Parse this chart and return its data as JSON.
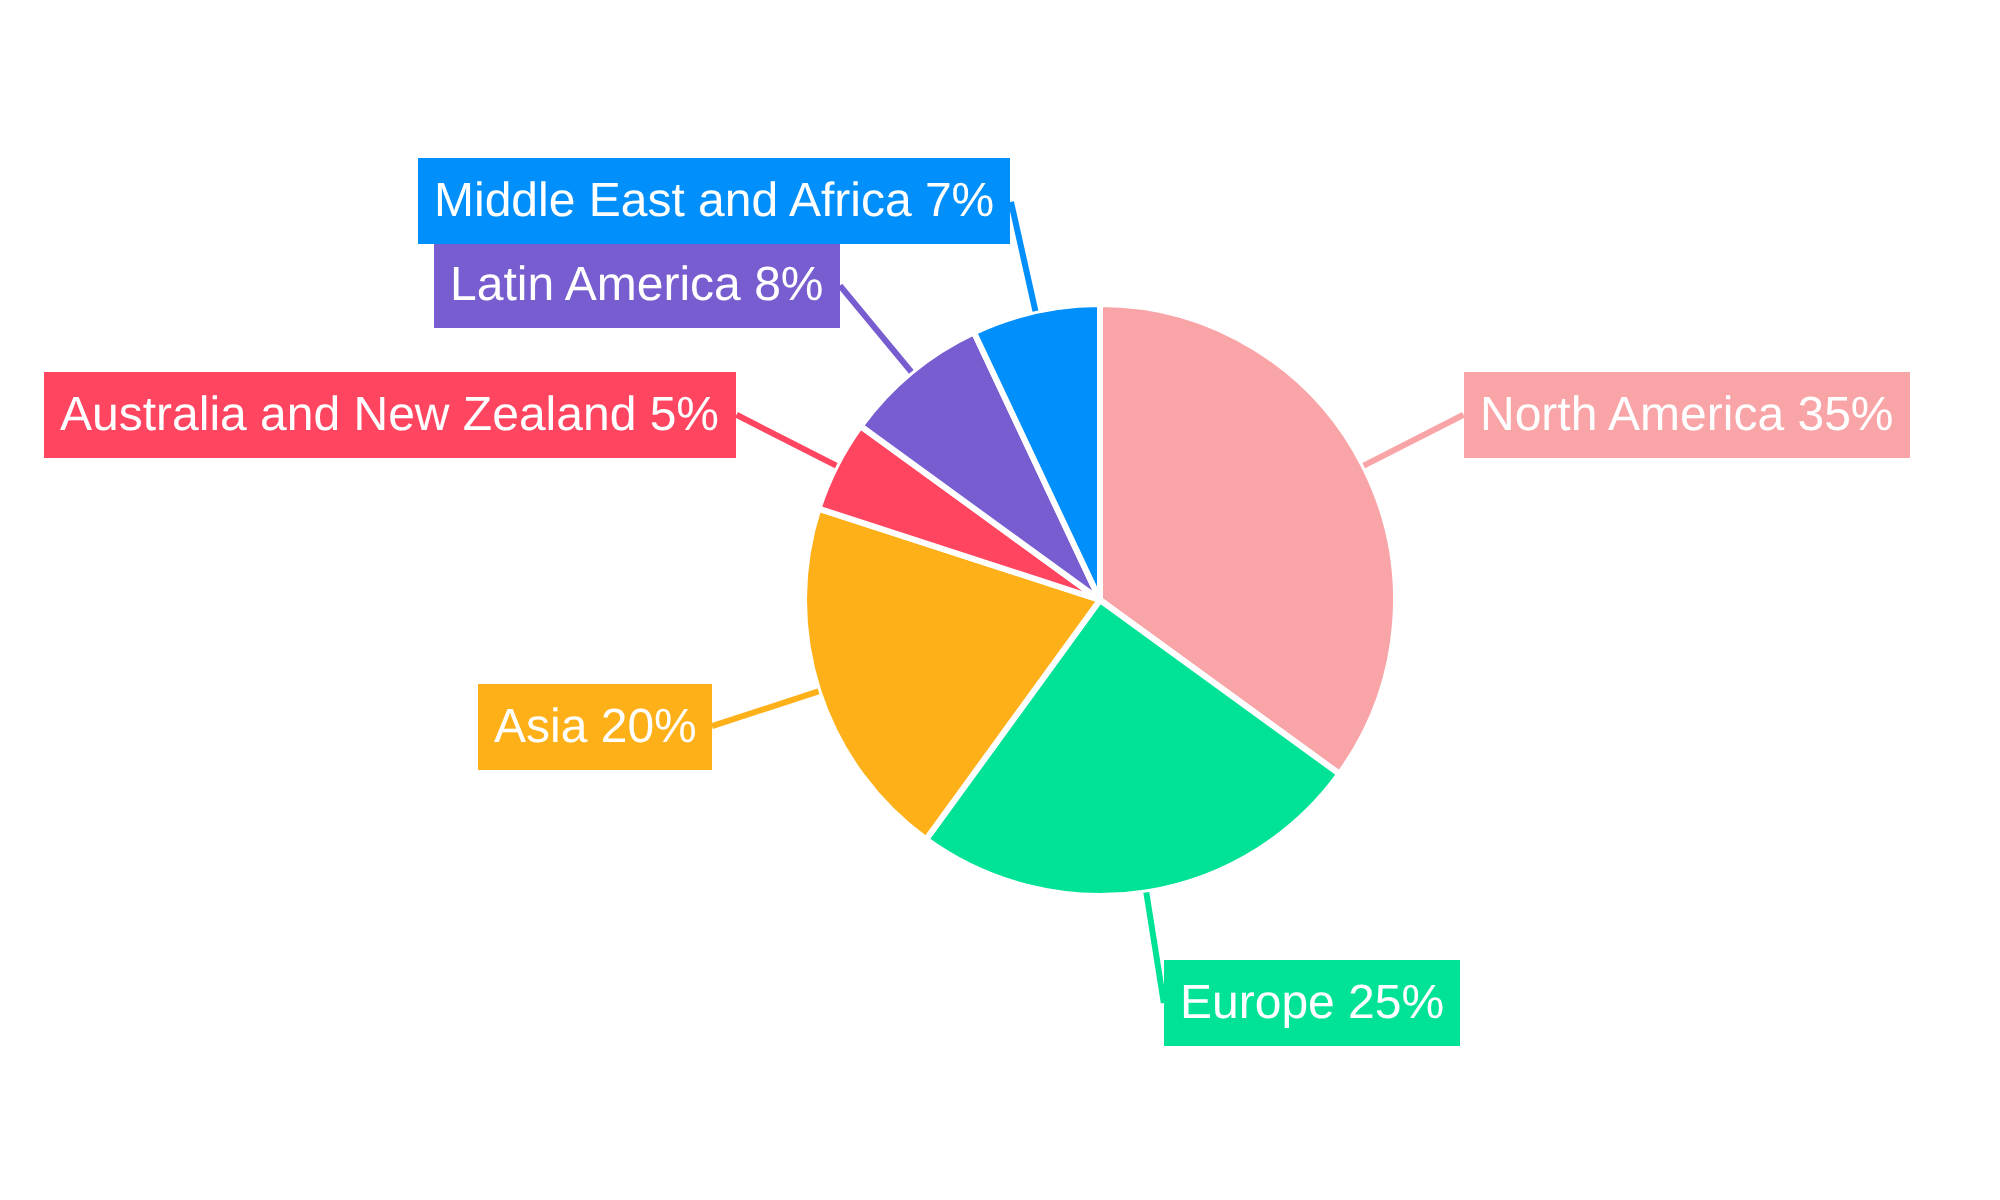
{
  "chart_data": {
    "type": "pie",
    "categories": [
      "North America",
      "Europe",
      "Asia",
      "Australia and New Zealand",
      "Latin America",
      "Middle East and Africa"
    ],
    "values": [
      35,
      25,
      20,
      5,
      8,
      7
    ],
    "value_labels": [
      "35%",
      "25%",
      "20%",
      "5%",
      "8%",
      "7%"
    ],
    "colors": [
      "#f9a4a6",
      "#00e396",
      "#feb019",
      "#ff4560",
      "#775dd0",
      "#008ffb"
    ]
  }
}
